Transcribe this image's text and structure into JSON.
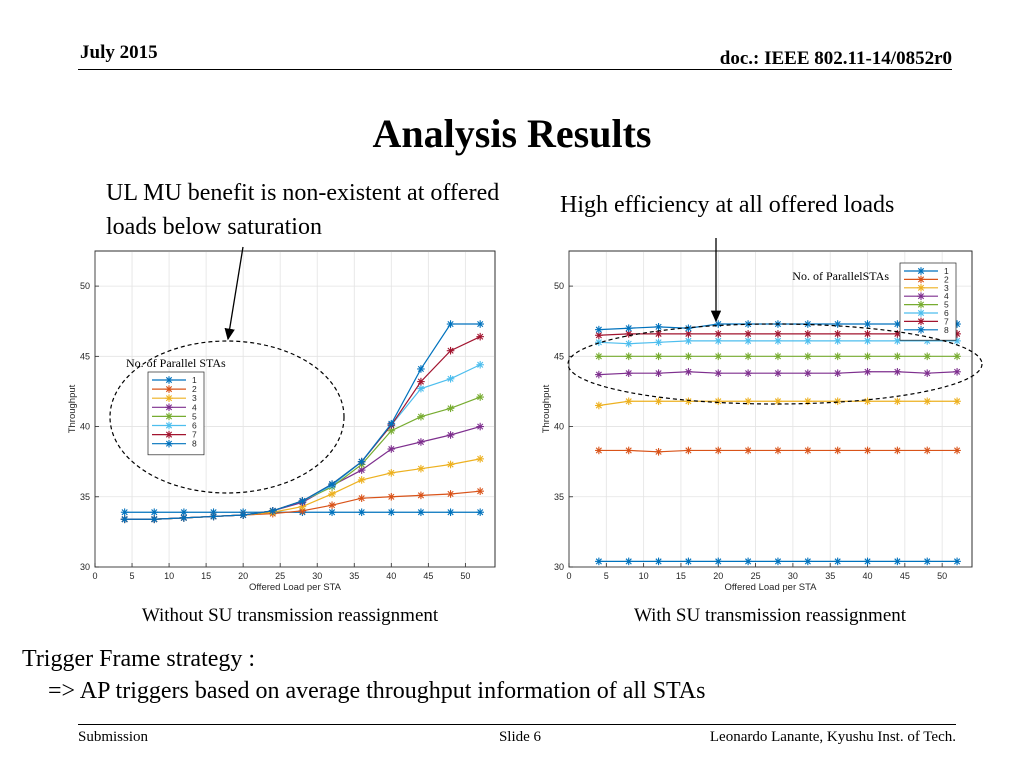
{
  "header": {
    "date": "July 2015",
    "doc_id": "doc.: IEEE 802.11-14/0852r0"
  },
  "slide_title": "Analysis Results",
  "notes": {
    "left": "UL MU benefit is non-existent at offered loads below saturation",
    "right": "High efficiency at all offered loads"
  },
  "captions": {
    "left": "Without SU transmission reassignment",
    "right": "With SU transmission reassignment"
  },
  "strategy": {
    "heading": "Trigger Frame strategy :",
    "detail": "=> AP triggers based on average throughput information of all STAs"
  },
  "footer": {
    "left": "Submission",
    "center": "Slide 6",
    "right": "Leonardo Lanante, Kyushu Inst. of Tech."
  },
  "chart_data": [
    {
      "type": "line",
      "title": "",
      "xlabel": "Offered Load per STA",
      "ylabel": "Throughput",
      "xlim": [
        0,
        54
      ],
      "ylim": [
        30,
        52.5
      ],
      "xticks": [
        0,
        5,
        10,
        15,
        20,
        25,
        30,
        35,
        40,
        45,
        50
      ],
      "yticks": [
        30,
        35,
        40,
        45,
        50
      ],
      "grid": true,
      "legend_title": "No. of Parallel STAs",
      "legend_position": "middle-left",
      "x": [
        4,
        8,
        12,
        16,
        20,
        24,
        28,
        32,
        36,
        40,
        44,
        48,
        52
      ],
      "series": [
        {
          "name": "1",
          "color": "#0072BD",
          "values": [
            33.9,
            33.9,
            33.9,
            33.9,
            33.9,
            33.9,
            33.9,
            33.9,
            33.9,
            33.9,
            33.9,
            33.9,
            33.9
          ]
        },
        {
          "name": "2",
          "color": "#D95319",
          "values": [
            33.4,
            33.4,
            33.5,
            33.6,
            33.7,
            33.8,
            34.0,
            34.4,
            34.9,
            35.0,
            35.1,
            35.2,
            35.4
          ]
        },
        {
          "name": "3",
          "color": "#EDB120",
          "values": [
            33.4,
            33.4,
            33.5,
            33.6,
            33.7,
            33.9,
            34.3,
            35.2,
            36.2,
            36.7,
            37.0,
            37.3,
            37.7
          ]
        },
        {
          "name": "4",
          "color": "#7E2F8E",
          "values": [
            33.4,
            33.4,
            33.5,
            33.6,
            33.7,
            34.0,
            34.6,
            35.8,
            36.9,
            38.4,
            38.9,
            39.4,
            40.0
          ]
        },
        {
          "name": "5",
          "color": "#77AC30",
          "values": [
            33.4,
            33.4,
            33.5,
            33.6,
            33.7,
            34.0,
            34.7,
            35.7,
            37.3,
            39.7,
            40.7,
            41.3,
            42.1
          ]
        },
        {
          "name": "6",
          "color": "#4DBEEE",
          "values": [
            33.4,
            33.4,
            33.5,
            33.6,
            33.7,
            34.0,
            34.7,
            35.8,
            37.5,
            40.1,
            42.7,
            43.4,
            44.4
          ]
        },
        {
          "name": "7",
          "color": "#A2142F",
          "values": [
            33.4,
            33.4,
            33.5,
            33.6,
            33.7,
            34.0,
            34.7,
            35.9,
            37.5,
            40.1,
            43.2,
            45.4,
            46.4
          ]
        },
        {
          "name": "8",
          "color": "#0072BD",
          "values": [
            33.4,
            33.4,
            33.5,
            33.6,
            33.7,
            34.0,
            34.7,
            35.9,
            37.5,
            40.2,
            44.1,
            47.3,
            47.3
          ]
        }
      ]
    },
    {
      "type": "line",
      "title": "",
      "xlabel": "Offered Load per STA",
      "ylabel": "Throughput",
      "xlim": [
        0,
        54
      ],
      "ylim": [
        30,
        52.5
      ],
      "xticks": [
        0,
        5,
        10,
        15,
        20,
        25,
        30,
        35,
        40,
        45,
        50
      ],
      "yticks": [
        30,
        35,
        40,
        45,
        50
      ],
      "grid": true,
      "legend_title": "No. of ParallelSTAs",
      "legend_position": "top-right",
      "x": [
        4,
        8,
        12,
        16,
        20,
        24,
        28,
        32,
        36,
        40,
        44,
        48,
        52
      ],
      "series": [
        {
          "name": "1",
          "color": "#0072BD",
          "values": [
            30.4,
            30.4,
            30.4,
            30.4,
            30.4,
            30.4,
            30.4,
            30.4,
            30.4,
            30.4,
            30.4,
            30.4,
            30.4
          ]
        },
        {
          "name": "2",
          "color": "#D95319",
          "values": [
            38.3,
            38.3,
            38.2,
            38.3,
            38.3,
            38.3,
            38.3,
            38.3,
            38.3,
            38.3,
            38.3,
            38.3,
            38.3
          ]
        },
        {
          "name": "3",
          "color": "#EDB120",
          "values": [
            41.5,
            41.8,
            41.8,
            41.8,
            41.8,
            41.8,
            41.8,
            41.8,
            41.8,
            41.8,
            41.8,
            41.8,
            41.8
          ]
        },
        {
          "name": "4",
          "color": "#7E2F8E",
          "values": [
            43.7,
            43.8,
            43.8,
            43.9,
            43.8,
            43.8,
            43.8,
            43.8,
            43.8,
            43.9,
            43.9,
            43.8,
            43.9
          ]
        },
        {
          "name": "5",
          "color": "#77AC30",
          "values": [
            45.0,
            45.0,
            45.0,
            45.0,
            45.0,
            45.0,
            45.0,
            45.0,
            45.0,
            45.0,
            45.0,
            45.0,
            45.0
          ]
        },
        {
          "name": "6",
          "color": "#4DBEEE",
          "values": [
            46.0,
            45.9,
            46.0,
            46.1,
            46.1,
            46.1,
            46.1,
            46.1,
            46.1,
            46.1,
            46.1,
            46.1,
            46.1
          ]
        },
        {
          "name": "7",
          "color": "#A2142F",
          "values": [
            46.5,
            46.6,
            46.6,
            46.6,
            46.6,
            46.6,
            46.6,
            46.6,
            46.6,
            46.6,
            46.6,
            46.6,
            46.6
          ]
        },
        {
          "name": "8",
          "color": "#0072BD",
          "values": [
            46.9,
            47.0,
            47.1,
            47.0,
            47.3,
            47.3,
            47.3,
            47.3,
            47.3,
            47.3,
            47.3,
            47.3,
            47.3
          ]
        }
      ]
    }
  ]
}
